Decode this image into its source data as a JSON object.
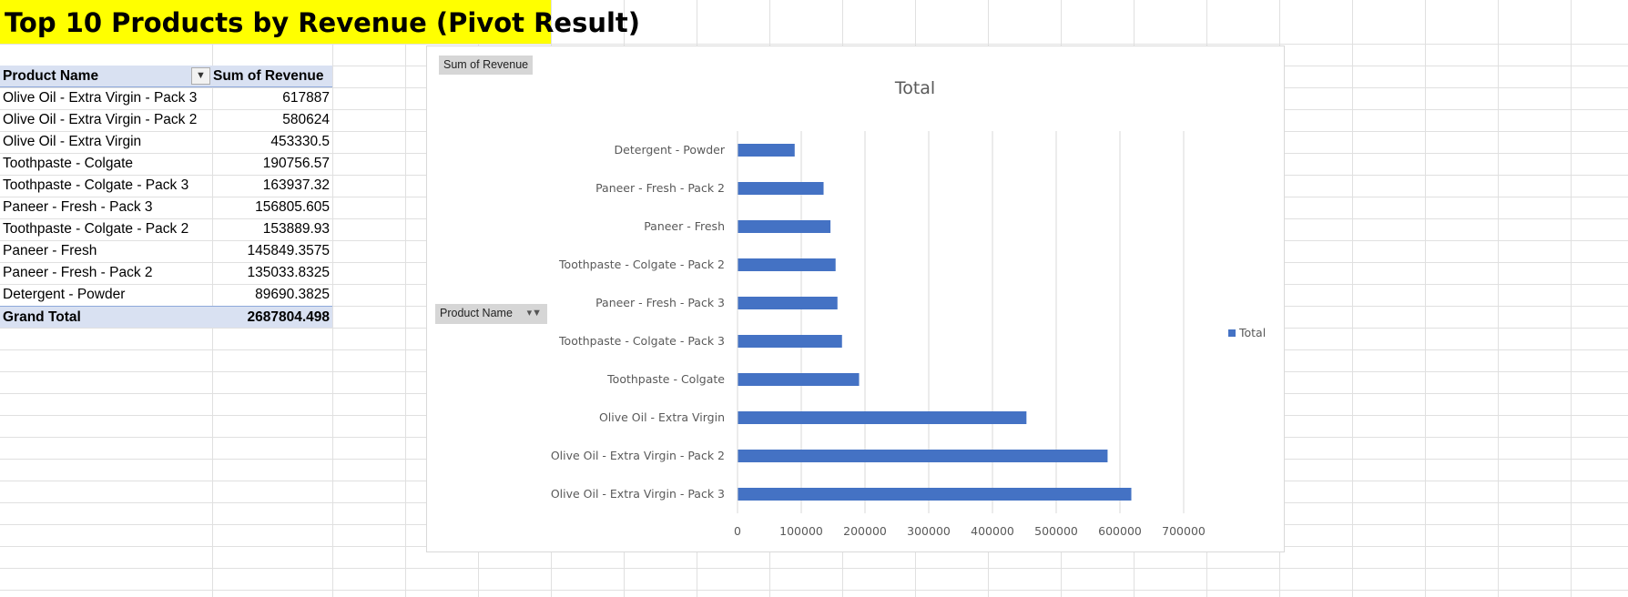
{
  "sheet": {
    "title": "Top 10 Products by Revenue (Pivot Result)"
  },
  "pivot": {
    "header": {
      "row_label": "Product Name",
      "value_label": "Sum of Revenue"
    },
    "rows": [
      {
        "name": "Olive Oil - Extra Virgin - Pack 3",
        "value": "617887"
      },
      {
        "name": "Olive Oil - Extra Virgin - Pack 2",
        "value": "580624"
      },
      {
        "name": "Olive Oil - Extra Virgin",
        "value": "453330.5"
      },
      {
        "name": "Toothpaste - Colgate",
        "value": "190756.57"
      },
      {
        "name": "Toothpaste - Colgate - Pack 3",
        "value": "163937.32"
      },
      {
        "name": "Paneer - Fresh - Pack 3",
        "value": "156805.605"
      },
      {
        "name": "Toothpaste - Colgate - Pack 2",
        "value": "153889.93"
      },
      {
        "name": "Paneer - Fresh",
        "value": "145849.3575"
      },
      {
        "name": "Paneer - Fresh - Pack 2",
        "value": "135033.8325"
      },
      {
        "name": "Detergent - Powder",
        "value": "89690.3825"
      }
    ],
    "grand_total": {
      "label": "Grand Total",
      "value": "2687804.498"
    }
  },
  "chart_buttons": {
    "value_field": "Sum of Revenue",
    "axis_field": "Product Name"
  },
  "chart_data": {
    "type": "bar",
    "orientation": "horizontal",
    "title": "Total",
    "categories": [
      "Detergent - Powder",
      "Paneer - Fresh - Pack 2",
      "Paneer - Fresh",
      "Toothpaste - Colgate - Pack 2",
      "Paneer - Fresh - Pack 3",
      "Toothpaste - Colgate - Pack 3",
      "Toothpaste - Colgate",
      "Olive Oil - Extra Virgin",
      "Olive Oil - Extra Virgin - Pack 2",
      "Olive Oil - Extra Virgin - Pack 3"
    ],
    "series": [
      {
        "name": "Total",
        "color": "#4472c4",
        "values": [
          89690.3825,
          135033.8325,
          145849.3575,
          153889.93,
          156805.605,
          163937.32,
          190756.57,
          453330.5,
          580624,
          617887
        ]
      }
    ],
    "xlim": [
      0,
      700000
    ],
    "xticks": [
      0,
      100000,
      200000,
      300000,
      400000,
      500000,
      600000,
      700000
    ],
    "grid": true,
    "legend": "right"
  }
}
